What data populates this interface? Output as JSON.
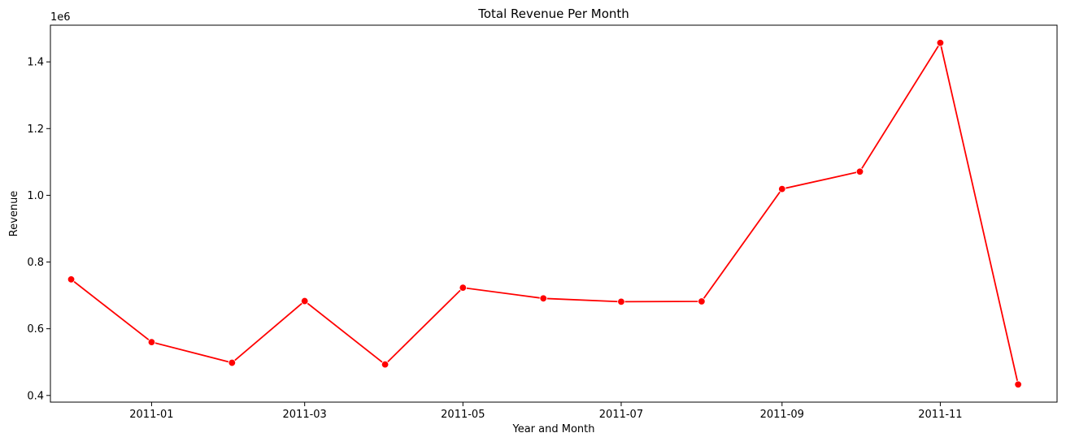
{
  "chart_data": {
    "type": "line",
    "title": "Total Revenue Per Month",
    "xlabel": "Year and Month",
    "ylabel": "Revenue",
    "y_offset_label": "1e6",
    "x": [
      "2010-12",
      "2011-01",
      "2011-02",
      "2011-03",
      "2011-04",
      "2011-05",
      "2011-06",
      "2011-07",
      "2011-08",
      "2011-09",
      "2011-10",
      "2011-11",
      "2011-12"
    ],
    "series": [
      {
        "values": [
          748000,
          560000,
          498000,
          683000,
          493000,
          723000,
          691000,
          681000,
          682000,
          1019000,
          1071000,
          1457000,
          433000
        ],
        "color": "#ff0000",
        "marker": "circle"
      }
    ],
    "x_ticks": [
      "2011-01",
      "2011-03",
      "2011-05",
      "2011-07",
      "2011-09",
      "2011-11"
    ],
    "y_ticks": [
      "0.4",
      "0.6",
      "0.8",
      "1.0",
      "1.2",
      "1.4"
    ],
    "ylim": [
      380000,
      1510000
    ],
    "xlim": [
      "2010-11-23",
      "2011-12-16"
    ],
    "grid": false,
    "legend": "none"
  }
}
